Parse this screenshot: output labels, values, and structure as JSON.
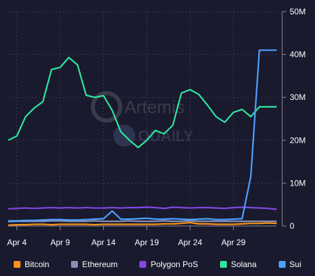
{
  "chart_data": {
    "type": "line",
    "x": [
      "Apr 3",
      "Apr 4",
      "Apr 5",
      "Apr 6",
      "Apr 7",
      "Apr 8",
      "Apr 9",
      "Apr 10",
      "Apr 11",
      "Apr 12",
      "Apr 13",
      "Apr 14",
      "Apr 15",
      "Apr 16",
      "Apr 17",
      "Apr 18",
      "Apr 19",
      "Apr 20",
      "Apr 21",
      "Apr 22",
      "Apr 23",
      "Apr 24",
      "Apr 25",
      "Apr 26",
      "Apr 27",
      "Apr 28",
      "Apr 29",
      "Apr 30",
      "May 1",
      "May 2",
      "May 3",
      "May 4"
    ],
    "xticks": [
      "Apr 4",
      "Apr 9",
      "Apr 14",
      "Apr 19",
      "Apr 24",
      "Apr 29"
    ],
    "yticks": [
      "0",
      "10M",
      "20M",
      "30M",
      "40M",
      "50M"
    ],
    "ylim": [
      0,
      50000000
    ],
    "y_axis_side": "right",
    "grid": true,
    "legend_position": "bottom",
    "watermarks": [
      "Artemis",
      "ODAILY"
    ],
    "series": [
      {
        "name": "Bitcoin",
        "color": "#f7931a",
        "values": [
          200000,
          300000,
          300000,
          400000,
          400000,
          300000,
          400000,
          400000,
          400000,
          400000,
          300000,
          400000,
          400000,
          400000,
          400000,
          400000,
          400000,
          400000,
          500000,
          500000,
          600000,
          800000,
          500000,
          500000,
          400000,
          400000,
          400000,
          500000,
          600000,
          600000,
          700000,
          600000
        ]
      },
      {
        "name": "Ethereum",
        "color": "#8a8fb5",
        "values": [
          1000000,
          1100000,
          1100000,
          1100000,
          1100000,
          1200000,
          1200000,
          1100000,
          1100000,
          1100000,
          1200000,
          1100000,
          1100000,
          1100000,
          1200000,
          1100000,
          1100000,
          1100000,
          1200000,
          1100000,
          1100000,
          1200000,
          1100000,
          1100000,
          1100000,
          1100000,
          1100000,
          1100000,
          1100000,
          1100000,
          1100000,
          1100000
        ]
      },
      {
        "name": "Polygon PoS",
        "color": "#8247e5",
        "values": [
          4000000,
          4100000,
          4200000,
          4100000,
          4200000,
          4300000,
          4200000,
          4300000,
          4200000,
          4300000,
          4200000,
          4200000,
          4300000,
          4200000,
          4300000,
          4300000,
          4400000,
          4300000,
          4100000,
          4400000,
          4300000,
          4200000,
          4300000,
          4300000,
          4200000,
          4100000,
          4300000,
          4400000,
          4300000,
          4200000,
          4100000,
          3900000
        ]
      },
      {
        "name": "Solana",
        "color": "#2ee6a0",
        "values": [
          20000000,
          21000000,
          25500000,
          27500000,
          29000000,
          36500000,
          37000000,
          39300000,
          37600000,
          30500000,
          30000000,
          30400000,
          27000000,
          22000000,
          20000000,
          18300000,
          20000000,
          22300000,
          21500000,
          23500000,
          31000000,
          31800000,
          30700000,
          28200000,
          25500000,
          24200000,
          26500000,
          27200000,
          25500000,
          27800000,
          27800000,
          27800000
        ]
      },
      {
        "name": "Sui",
        "color": "#4da2ff",
        "values": [
          1200000,
          1200000,
          1300000,
          1300000,
          1400000,
          1500000,
          1500000,
          1400000,
          1400000,
          1500000,
          1600000,
          1700000,
          3500000,
          1600000,
          1600000,
          1700000,
          1800000,
          1600000,
          1600000,
          1700000,
          1600000,
          1500000,
          1600000,
          1700000,
          1500000,
          1500000,
          1600000,
          1700000,
          11500000,
          41000000,
          41000000,
          41000000
        ]
      }
    ]
  }
}
